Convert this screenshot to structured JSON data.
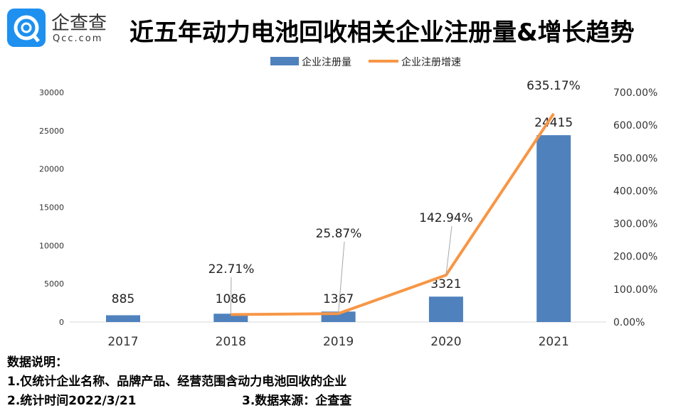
{
  "header": {
    "logo_cn": "企查查",
    "logo_en": "Qcc.com",
    "title": "近五年动力电池回收相关企业注册量&增长趋势"
  },
  "chart_data": {
    "type": "bar+line",
    "categories": [
      "2017",
      "2018",
      "2019",
      "2020",
      "2021"
    ],
    "series": [
      {
        "name": "企业注册量",
        "type": "bar",
        "axis": "left",
        "values": [
          885,
          1086,
          1367,
          3321,
          24415
        ],
        "labels": [
          "885",
          "1086",
          "1367",
          "3321",
          "24415"
        ],
        "color": "#4f81bd"
      },
      {
        "name": "企业注册增速",
        "type": "line",
        "axis": "right",
        "values": [
          null,
          22.71,
          25.87,
          142.94,
          635.17
        ],
        "labels": [
          "",
          "22.71%",
          "25.87%",
          "142.94%",
          "635.17%"
        ],
        "color": "#f79646"
      }
    ],
    "left_axis": {
      "ylim": [
        0,
        30000
      ],
      "ticks": [
        "0",
        "5000",
        "10000",
        "15000",
        "20000",
        "25000",
        "30000"
      ]
    },
    "right_axis": {
      "ylim": [
        0,
        700
      ],
      "ticks": [
        "0.00%",
        "100.00%",
        "200.00%",
        "300.00%",
        "400.00%",
        "500.00%",
        "600.00%",
        "700.00%"
      ]
    },
    "legend": "top-center",
    "grid": false
  },
  "notes": {
    "heading": "数据说明：",
    "line1": "1.仅统计企业名称、品牌产品、经营范围含动力电池回收的企业",
    "line2": "2.统计时间2022/3/21",
    "line3": "3.数据来源：企查查"
  }
}
